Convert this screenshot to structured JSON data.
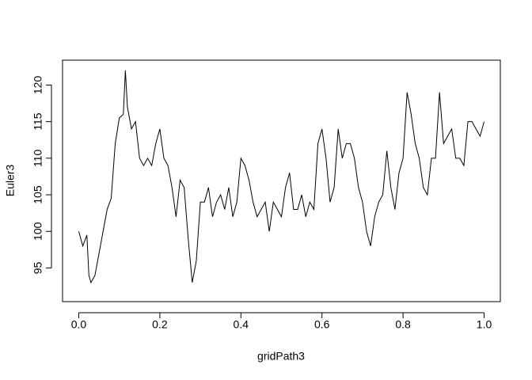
{
  "chart_data": {
    "type": "line",
    "x_label": "gridPath3",
    "y_label": "Euler3",
    "x": [
      0,
      0.01,
      0.02,
      0.025,
      0.03,
      0.04,
      0.05,
      0.06,
      0.07,
      0.08,
      0.09,
      0.1,
      0.11,
      0.115,
      0.12,
      0.13,
      0.14,
      0.15,
      0.16,
      0.17,
      0.18,
      0.19,
      0.2,
      0.21,
      0.22,
      0.23,
      0.24,
      0.25,
      0.26,
      0.27,
      0.28,
      0.29,
      0.3,
      0.31,
      0.32,
      0.33,
      0.34,
      0.35,
      0.36,
      0.37,
      0.38,
      0.39,
      0.4,
      0.41,
      0.42,
      0.43,
      0.44,
      0.45,
      0.46,
      0.47,
      0.48,
      0.49,
      0.5,
      0.51,
      0.52,
      0.53,
      0.54,
      0.55,
      0.56,
      0.57,
      0.58,
      0.59,
      0.6,
      0.61,
      0.62,
      0.63,
      0.64,
      0.65,
      0.66,
      0.67,
      0.68,
      0.69,
      0.7,
      0.71,
      0.72,
      0.73,
      0.74,
      0.75,
      0.76,
      0.77,
      0.78,
      0.79,
      0.8,
      0.81,
      0.82,
      0.83,
      0.84,
      0.85,
      0.86,
      0.87,
      0.88,
      0.89,
      0.9,
      0.91,
      0.92,
      0.93,
      0.94,
      0.95,
      0.96,
      0.97,
      0.98,
      0.99,
      1
    ],
    "values": [
      100,
      98,
      99.5,
      94,
      93,
      94,
      97,
      100,
      103,
      104.5,
      112,
      115.5,
      116,
      122,
      117,
      114,
      115,
      110,
      109,
      110,
      109,
      112,
      114,
      110,
      109,
      106,
      102,
      107,
      106,
      99,
      93,
      96,
      104,
      104,
      106,
      102,
      104,
      105,
      103,
      106,
      102,
      104,
      110,
      109,
      107,
      104,
      102,
      103,
      104,
      100,
      104,
      103,
      102,
      106,
      108,
      103,
      103,
      105,
      102,
      104,
      103,
      112,
      114,
      110,
      104,
      106,
      114,
      110,
      112,
      112,
      110,
      106,
      104,
      100,
      98,
      102,
      104,
      105,
      111,
      106,
      103,
      108,
      110,
      119,
      116,
      112,
      110,
      106,
      105,
      110,
      110,
      119,
      112,
      113,
      114,
      110,
      110,
      109,
      115,
      115,
      114,
      113,
      115
    ],
    "color": "#000000",
    "xlim": [
      -0.04,
      1.04
    ],
    "ylim": [
      90.4,
      123.4
    ],
    "xticks": [
      {
        "value": 0,
        "label": "0.0"
      },
      {
        "value": 0.2,
        "label": "0.2"
      },
      {
        "value": 0.4,
        "label": "0.4"
      },
      {
        "value": 0.6,
        "label": "0.6"
      },
      {
        "value": 0.8,
        "label": "0.8"
      },
      {
        "value": 1,
        "label": "1.0"
      }
    ],
    "yticks": [
      95,
      100,
      105,
      110,
      115,
      120
    ]
  }
}
